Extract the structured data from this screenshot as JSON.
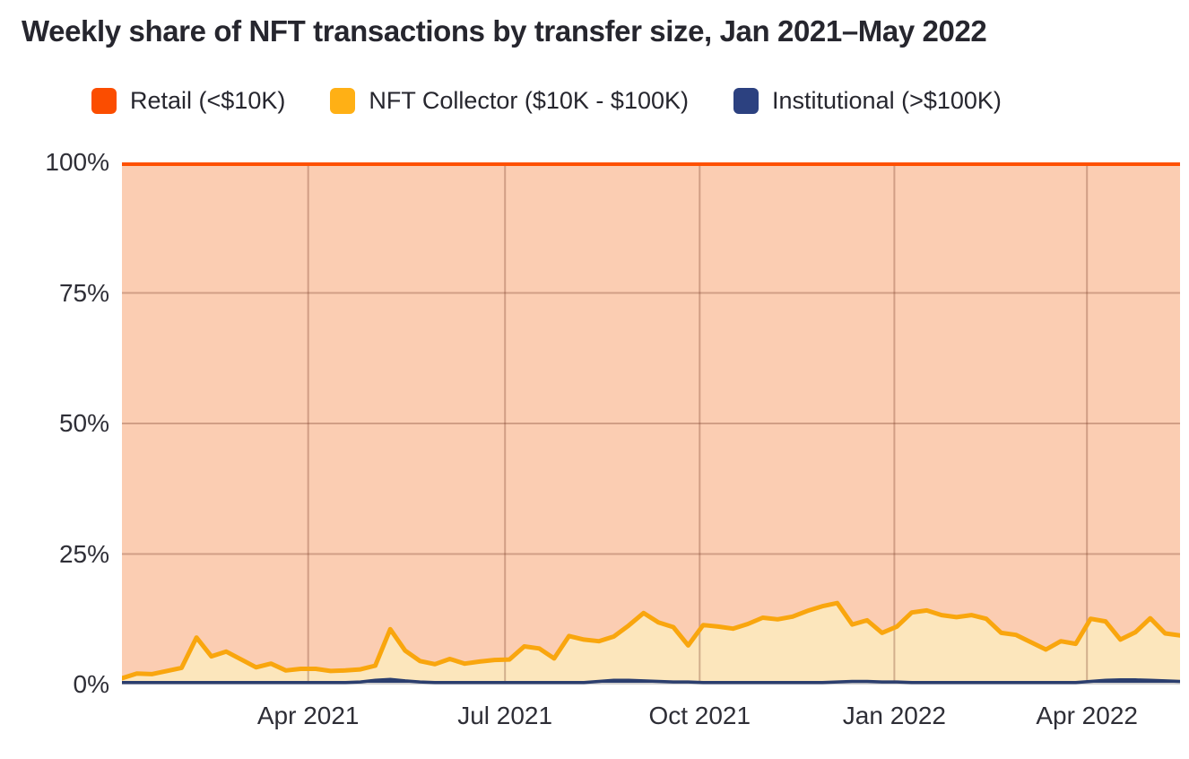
{
  "page": {
    "title": "Weekly share of NFT transactions by transfer size, Jan 2021–May 2022"
  },
  "legend": {
    "items": [
      {
        "label": "Retail (<$10K)",
        "color": "#FB4D00"
      },
      {
        "label": "NFT Collector ($10K - $100K)",
        "color": "#FFB015"
      },
      {
        "label": "Institutional (>$100K)",
        "color": "#2C4180"
      }
    ]
  },
  "colors": {
    "title_text": "#26262e",
    "axis_text": "#2e2e36",
    "gridline": "rgba(120,60,40,0.32)",
    "baseline_axis": "#d0cfce"
  },
  "chart_data": {
    "type": "area",
    "stacking": "percent",
    "title": "Weekly share of NFT transactions by transfer size, Jan 2021–May 2022",
    "x_unit": "week",
    "x_start_label": "Jan 2021",
    "x_end_label": "May 2022",
    "grid": "on",
    "legend_position": "top",
    "y_axis": {
      "range": [
        0,
        100
      ],
      "ticks": [
        {
          "label": "100%",
          "value": 100
        },
        {
          "label": "75%",
          "value": 75
        },
        {
          "label": "50%",
          "value": 50
        },
        {
          "label": "25%",
          "value": 25
        },
        {
          "label": "0%",
          "value": 0
        }
      ],
      "gridline_values": [
        25,
        50,
        75
      ]
    },
    "x_axis": {
      "ticks": [
        {
          "label": "Apr 2021",
          "pos": 0.176
        },
        {
          "label": "Jul 2021",
          "pos": 0.362
        },
        {
          "label": "Oct 2021",
          "pos": 0.546
        },
        {
          "label": "Jan 2022",
          "pos": 0.73
        },
        {
          "label": "Apr 2022",
          "pos": 0.912
        }
      ]
    },
    "series": [
      {
        "id": "institutional",
        "name": "Institutional (>$100K)",
        "line_color": "#2B3E6E",
        "fill_color": "#2B3E6E",
        "values": [
          0.4,
          0.4,
          0.4,
          0.4,
          0.4,
          0.4,
          0.4,
          0.4,
          0.4,
          0.4,
          0.4,
          0.4,
          0.4,
          0.4,
          0.4,
          0.4,
          0.5,
          0.8,
          1.0,
          0.7,
          0.5,
          0.4,
          0.4,
          0.4,
          0.4,
          0.4,
          0.4,
          0.4,
          0.4,
          0.4,
          0.4,
          0.4,
          0.6,
          0.8,
          0.8,
          0.7,
          0.6,
          0.5,
          0.5,
          0.4,
          0.4,
          0.4,
          0.4,
          0.4,
          0.4,
          0.4,
          0.4,
          0.4,
          0.5,
          0.6,
          0.6,
          0.5,
          0.5,
          0.4,
          0.4,
          0.4,
          0.4,
          0.4,
          0.4,
          0.4,
          0.4,
          0.4,
          0.4,
          0.4,
          0.4,
          0.6,
          0.8,
          0.9,
          0.9,
          0.8,
          0.7,
          0.6
        ]
      },
      {
        "id": "collector",
        "name": "NFT Collector ($10K - $100K)",
        "line_color": "#F9A60E",
        "fill_color": "#FCE6BC",
        "values": [
          0.8,
          1.7,
          1.6,
          2.2,
          2.8,
          8.6,
          5.0,
          5.9,
          4.4,
          2.9,
          3.6,
          2.3,
          2.6,
          2.6,
          2.2,
          2.3,
          2.4,
          2.8,
          9.6,
          5.8,
          4.0,
          3.5,
          4.5,
          3.6,
          4.0,
          4.3,
          4.4,
          6.9,
          6.5,
          4.6,
          8.9,
          8.2,
          7.7,
          8.4,
          10.5,
          13.0,
          11.3,
          10.5,
          7.0,
          11.0,
          10.7,
          10.3,
          11.2,
          12.4,
          12.1,
          12.6,
          13.7,
          14.6,
          15.1,
          10.9,
          11.7,
          9.4,
          10.6,
          13.4,
          13.8,
          12.9,
          12.5,
          12.9,
          12.2,
          9.5,
          9.1,
          7.7,
          6.3,
          7.9,
          7.4,
          12.0,
          11.3,
          7.7,
          9.1,
          11.9,
          9.1,
          8.8
        ]
      },
      {
        "id": "retail",
        "name": "Retail (<$10K)",
        "line_color": "#FE5000",
        "fill_color": "#FBCDB2",
        "values_mode": "remainder_to_100"
      }
    ]
  }
}
